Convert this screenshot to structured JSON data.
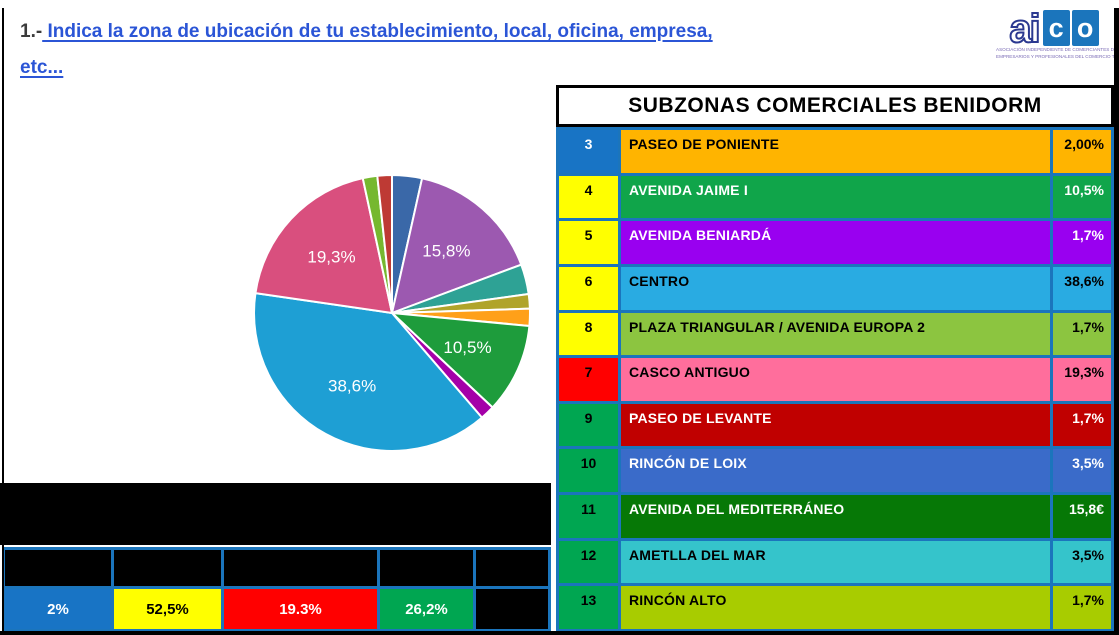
{
  "title": {
    "prefix": "1.-",
    "line1": " Indica la zona de ubicación de tu establecimiento, local, oficina, empresa,",
    "line2": "etc..."
  },
  "logo": {
    "ai": "ai",
    "c": "c",
    "o": "o",
    "tagline1": "ASOCIACIÓN INDEPENDIENTE DE COMERCIANTES DE BENIDORM Y PROVINCIA",
    "tagline2": "EMPRESARIOS Y PROFESIONALES DEL COMERCIO TURÍSTICO"
  },
  "table": {
    "header": "SUBZONAS COMERCIALES BENIDORM",
    "grid_color": "#1b75bc",
    "rows": [
      {
        "num": "3",
        "num_bg": "#1874c5",
        "num_color": "#ffffff",
        "name": "PASEO DE PONIENTE",
        "value": "2,00%",
        "bg": "#ffb400",
        "text_color": "#000000"
      },
      {
        "num": "4",
        "num_bg": "#ffff00",
        "num_color": "#000000",
        "name": "AVENIDA JAIME I",
        "value": "10,5%",
        "bg": "#10a54a",
        "text_color": "#ffffff"
      },
      {
        "num": "5",
        "num_bg": "#ffff00",
        "num_color": "#000000",
        "name": "AVENIDA BENIARDÁ",
        "value": "1,7%",
        "bg": "#9900f0",
        "text_color": "#ffffff"
      },
      {
        "num": "6",
        "num_bg": "#ffff00",
        "num_color": "#000000",
        "name": "CENTRO",
        "value": "38,6%",
        "bg": "#29abe2",
        "text_color": "#000000"
      },
      {
        "num": "8",
        "num_bg": "#ffff00",
        "num_color": "#000000",
        "name": "PLAZA TRIANGULAR / AVENIDA EUROPA 2",
        "value": "1,7%",
        "bg": "#8cc540",
        "text_color": "#000000"
      },
      {
        "num": "7",
        "num_bg": "#ff0000",
        "num_color": "#000000",
        "name": "CASCO ANTIGUO",
        "value": "19,3%",
        "bg": "#ff6e9c",
        "text_color": "#000000"
      },
      {
        "num": "9",
        "num_bg": "#00a651",
        "num_color": "#000000",
        "name": "PASEO DE LEVANTE",
        "value": "1,7%",
        "bg": "#c00000",
        "text_color": "#ffffff"
      },
      {
        "num": "10",
        "num_bg": "#00a651",
        "num_color": "#000000",
        "name": "RINCÓN DE LOIX",
        "value": "3,5%",
        "bg": "#3a6bc9",
        "text_color": "#ffffff"
      },
      {
        "num": "11",
        "num_bg": "#00a651",
        "num_color": "#000000",
        "name": "AVENIDA DEL MEDITERRÁNEO",
        "value": "15,8€",
        "bg": "#067806",
        "text_color": "#ffffff"
      },
      {
        "num": "12",
        "num_bg": "#00a651",
        "num_color": "#000000",
        "name": "AMETLLA DEL MAR",
        "value": "3,5%",
        "bg": "#35c4cb",
        "text_color": "#000000"
      },
      {
        "num": "13",
        "num_bg": "#00a651",
        "num_color": "#000000",
        "name": "RINCÓN ALTO",
        "value": "1,7%",
        "bg": "#a8cc00",
        "text_color": "#000000"
      }
    ]
  },
  "chart_data": {
    "type": "pie",
    "title": "",
    "legend_position": "none",
    "start_angle_deg": 0,
    "direction": "clockwise",
    "slices": [
      {
        "name": "RINCÓN DE LOIX",
        "value": 3.5,
        "color": "#3a68a8",
        "label": ""
      },
      {
        "name": "AVENIDA DEL MEDITERRÁNEO",
        "value": 15.8,
        "color": "#9c59b0",
        "label": "15,8%"
      },
      {
        "name": "AMETLLA DEL MAR",
        "value": 3.5,
        "color": "#2ea295",
        "label": ""
      },
      {
        "name": "PLAZA TRIANGULAR / AVENIDA EUROPA 2",
        "value": 1.7,
        "color": "#b0a42a",
        "label": ""
      },
      {
        "name": "PASEO DE PONIENTE",
        "value": 2.0,
        "color": "#ffa019",
        "label": ""
      },
      {
        "name": "AVENIDA JAIME I",
        "value": 10.5,
        "color": "#1e9c3c",
        "label": "10,5%"
      },
      {
        "name": "AVENIDA BENIARDÁ",
        "value": 1.7,
        "color": "#a400a8",
        "label": ""
      },
      {
        "name": "CENTRO",
        "value": 38.6,
        "color": "#1e9fd4",
        "label": "38,6%"
      },
      {
        "name": "CASCO ANTIGUO",
        "value": 19.3,
        "color": "#d94f7e",
        "label": "19,3%"
      },
      {
        "name": "RINCÓN ALTO",
        "value": 1.7,
        "color": "#76b82f",
        "label": ""
      },
      {
        "name": "PASEO DE LEVANTE",
        "value": 1.7,
        "color": "#be3a34",
        "label": ""
      }
    ]
  },
  "bottom_table": {
    "header_cells": [
      "",
      "",
      "",
      "",
      ""
    ],
    "header_bg": "#000000",
    "value_cells": [
      {
        "text": "2%",
        "bg": "#1874c5",
        "color": "#ffffff"
      },
      {
        "text": "52,5%",
        "bg": "#ffff00",
        "color": "#000000"
      },
      {
        "text": "19.3%",
        "bg": "#ff0000",
        "color": "#ffffff"
      },
      {
        "text": "26,2%",
        "bg": "#00a651",
        "color": "#ffffff"
      },
      {
        "text": "",
        "bg": "#000000",
        "color": "#ffffff"
      }
    ]
  }
}
